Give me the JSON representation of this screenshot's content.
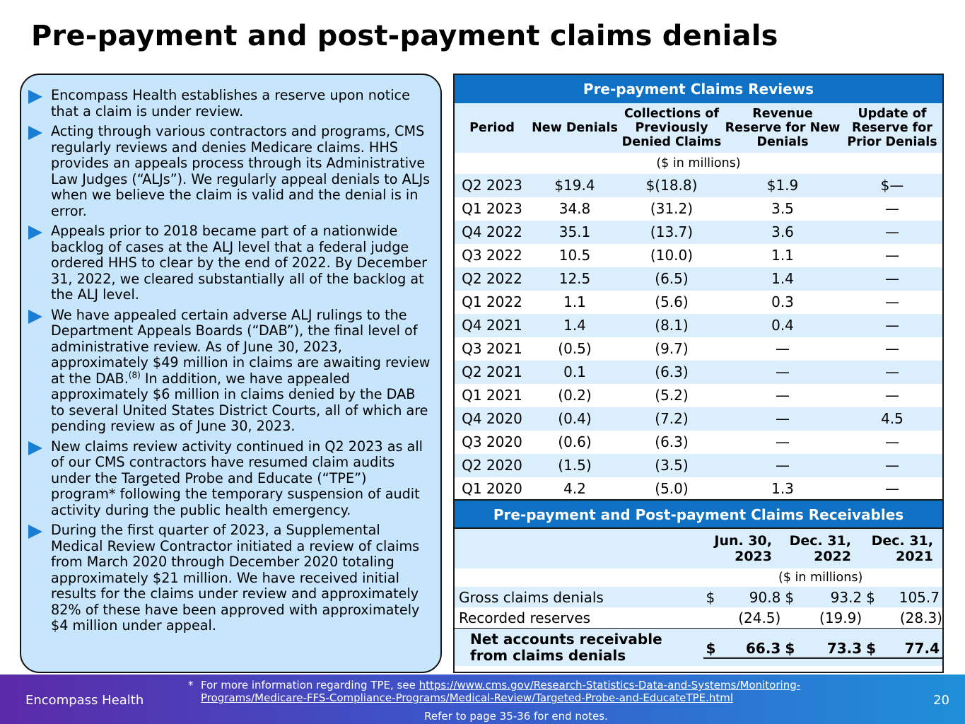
{
  "title": "Pre-payment and post-payment claims denials",
  "bullets": [
    {
      "text": "Encompass Health establishes a reserve upon notice that a claim is under review."
    },
    {
      "text": "Acting through various contractors and programs, CMS regularly reviews and denies Medicare claims. HHS provides an appeals process through its Administrative Law Judges (“ALJs”). We regularly appeal denials to ALJs when we believe the claim is valid and the denial is in error."
    },
    {
      "text": "Appeals prior to 2018 became part of a nationwide backlog of cases at the ALJ level that a federal judge ordered HHS to clear by the end of 2022. By December 31, 2022, we cleared substantially all of the backlog at the ALJ level."
    },
    {
      "text_a": "We have appealed certain adverse ALJ rulings to the Department Appeals Boards (“DAB”), the final level of administrative review. As of June 30, 2023, approximately $49 million in claims are awaiting review at the DAB.",
      "sup": "(8)",
      "text_b": " In addition, we have appealed approximately $6 million in claims denied by the DAB to several United States District Courts, all of which are pending review as of June 30, 2023."
    },
    {
      "text": "New claims review activity continued in Q2 2023 as all of our CMS contractors have resumed claim audits under the Targeted Probe and Educate (“TPE”) program* following the temporary suspension of audit activity during the public health emergency."
    },
    {
      "text": "During the first quarter of 2023, a Supplemental Medical Review Contractor initiated a review of claims from March 2020 through December 2020 totaling approximately $21 million. We have received initial results for the claims under review and approximately 82% of these have been approved with approximately $4 million under appeal."
    }
  ],
  "reviews": {
    "title": "Pre-payment Claims Reviews",
    "headers": [
      "Period",
      "New Denials",
      "Collections of Previously Denied Claims",
      "Revenue Reserve for New Denials",
      "Update of Reserve for Prior Denials"
    ],
    "unit": "($ in millions)",
    "rows": [
      [
        "Q2 2023",
        "$19.4",
        "$(18.8)",
        "$1.9",
        "$—"
      ],
      [
        "Q1 2023",
        "34.8",
        "(31.2)",
        "3.5",
        "—"
      ],
      [
        "Q4 2022",
        "35.1",
        "(13.7)",
        "3.6",
        "—"
      ],
      [
        "Q3 2022",
        "10.5",
        "(10.0)",
        "1.1",
        "—"
      ],
      [
        "Q2 2022",
        "12.5",
        "(6.5)",
        "1.4",
        "—"
      ],
      [
        "Q1 2022",
        "1.1",
        "(5.6)",
        "0.3",
        "—"
      ],
      [
        "Q4 2021",
        "1.4",
        "(8.1)",
        "0.4",
        "—"
      ],
      [
        "Q3 2021",
        "(0.5)",
        "(9.7)",
        "—",
        "—"
      ],
      [
        "Q2 2021",
        "0.1",
        "(6.3)",
        "—",
        "—"
      ],
      [
        "Q1 2021",
        "(0.2)",
        "(5.2)",
        "—",
        "—"
      ],
      [
        "Q4 2020",
        "(0.4)",
        "(7.2)",
        "—",
        "4.5"
      ],
      [
        "Q3 2020",
        "(0.6)",
        "(6.3)",
        "—",
        "—"
      ],
      [
        "Q2 2020",
        "(1.5)",
        "(3.5)",
        "—",
        "—"
      ],
      [
        "Q1 2020",
        "4.2",
        "(5.0)",
        "1.3",
        "—"
      ]
    ]
  },
  "receivables": {
    "title": "Pre-payment and Post-payment Claims Receivables",
    "headers": [
      "Jun. 30, 2023",
      "Dec. 31, 2022",
      "Dec. 31, 2021"
    ],
    "unit": "($ in millions)",
    "gross_label": "Gross claims denials",
    "gross": [
      "90.8",
      "93.2",
      "105.7"
    ],
    "reserves_label": "Recorded reserves",
    "reserves": [
      "(24.5)",
      "(19.9)",
      "(28.3)"
    ],
    "net_label": "Net accounts receivable from claims denials",
    "net": [
      "66.3",
      "73.3",
      "77.4"
    ],
    "currency": "$"
  },
  "footer": {
    "company": "Encompass Health",
    "page": "20",
    "note_star": "*",
    "note_text": "For more information regarding TPE, see ",
    "note_link": "https://www.cms.gov/Research-Statistics-Data-and-Systems/Monitoring-Programs/Medicare-FFS-Compliance-Programs/Medical-Review/Targeted-Probe-and-EducateTPE.html",
    "endnotes": "Refer to page 35-36 for end notes."
  }
}
